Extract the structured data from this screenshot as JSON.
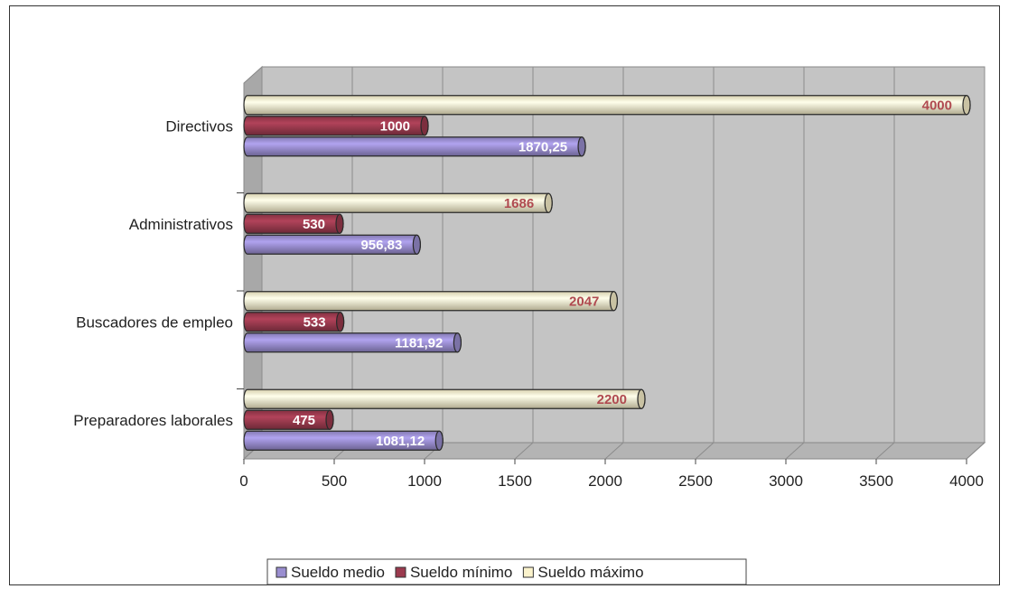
{
  "chart_data": {
    "type": "bar",
    "orientation": "horizontal",
    "categories": [
      "Directivos",
      "Administrativos",
      "Buscadores de empleo",
      "Preparadores laborales"
    ],
    "series": [
      {
        "name": "Sueldo medio",
        "values": [
          1870.25,
          956.83,
          1181.92,
          1081.12
        ],
        "labels": [
          "1870,25",
          "956,83",
          "1181,92",
          "1081,12"
        ],
        "color": "#9a8ed0",
        "label_color": "#ffffff"
      },
      {
        "name": "Sueldo mínimo",
        "values": [
          1000,
          530,
          533,
          475
        ],
        "labels": [
          "1000",
          "530",
          "533",
          "475"
        ],
        "color": "#9b3a4e",
        "label_color": "#ffffff"
      },
      {
        "name": "Sueldo máximo",
        "values": [
          4000,
          1686,
          2047,
          2200
        ],
        "labels": [
          "4000",
          "1686",
          "2047",
          "2200"
        ],
        "color": "#fbf3cc",
        "label_color": "#b04a50"
      }
    ],
    "xlim": [
      0,
      4000
    ],
    "xticks": [
      0,
      500,
      1000,
      1500,
      2000,
      2500,
      3000,
      3500,
      4000
    ],
    "xtick_labels": [
      "0",
      "500",
      "1000",
      "1500",
      "2000",
      "2500",
      "3000",
      "3500",
      "4000"
    ],
    "grid": true,
    "style": "3d-cylinder",
    "legend_position": "bottom",
    "plot_background": "#c4c4c4",
    "title": "",
    "xlabel": "",
    "ylabel": ""
  }
}
